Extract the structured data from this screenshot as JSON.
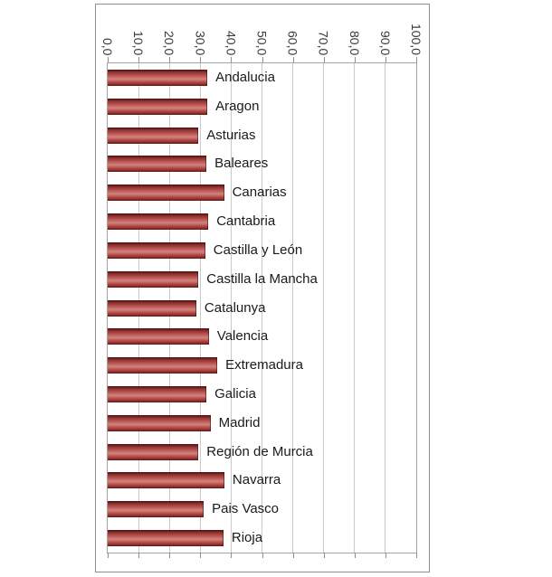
{
  "chart_data": {
    "type": "bar",
    "orientation": "horizontal",
    "title": "",
    "xlabel": "",
    "ylabel": "",
    "xlim": [
      0,
      100
    ],
    "grid": true,
    "value_axis_position": "top",
    "tick_label_rotation_deg": 90,
    "category_label_position": "end-of-bar",
    "x_tick_values": [
      0,
      10,
      20,
      30,
      40,
      50,
      60,
      70,
      80,
      90,
      100
    ],
    "x_ticks": [
      "0,0",
      "10,0",
      "20,0",
      "30,0",
      "40,0",
      "50,0",
      "60,0",
      "70,0",
      "80,0",
      "90,0",
      "100,0"
    ],
    "categories": [
      "Andalucia",
      "Aragon",
      "Asturias",
      "Baleares",
      "Canarias",
      "Cantabria",
      "Castilla y León",
      "Castilla la Mancha",
      "Catalunya",
      "Valencia",
      "Extremadura",
      "Galicia",
      "Madrid",
      "Región de Murcia",
      "Navarra",
      "Pais Vasco",
      "Rioja"
    ],
    "values": [
      32.3,
      32.3,
      29.4,
      32.0,
      37.7,
      32.6,
      31.6,
      29.4,
      28.7,
      32.8,
      35.5,
      32.0,
      33.3,
      29.4,
      37.8,
      31.1,
      37.5
    ]
  },
  "style": {
    "bar_gradient": [
      "#441010 0%",
      "#8c2f2d 15%",
      "#c05b57 40%",
      "#d28480 58%",
      "#b94e4b 75%",
      "#8a2a28 92%",
      "#531413 100%"
    ],
    "gridline_color": "#c9c9c9",
    "plot_border_color": "#a3a3a3",
    "frame_border_color": "#8f8f8f",
    "tick_color": "#8f8f8f",
    "bar_label_color": "#1a1a1a",
    "tick_label_color": "#3a3a3a",
    "background_color": "#ffffff"
  }
}
